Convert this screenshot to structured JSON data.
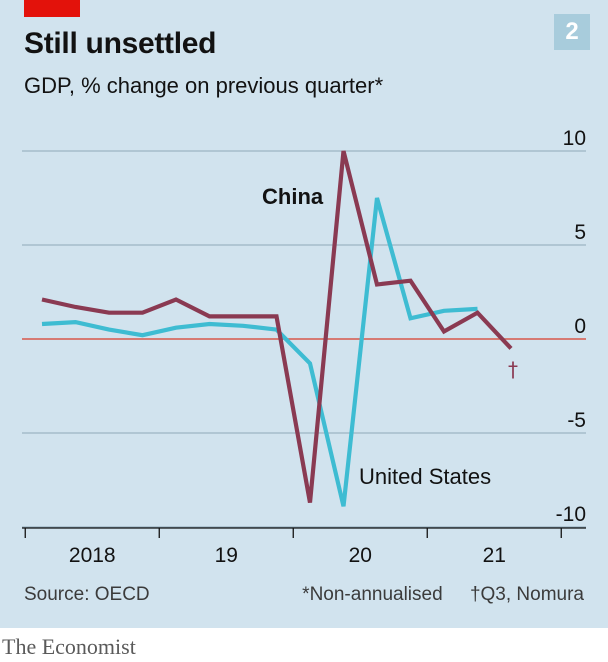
{
  "chart_data": {
    "type": "line",
    "title": "Still unsettled",
    "subtitle": "GDP, % change on previous quarter*",
    "chart_number": "2",
    "x": [
      "2018Q1",
      "2018Q2",
      "2018Q3",
      "2018Q4",
      "2019Q1",
      "2019Q2",
      "2019Q3",
      "2019Q4",
      "2020Q1",
      "2020Q2",
      "2020Q3",
      "2020Q4",
      "2021Q1",
      "2021Q2",
      "2021Q3"
    ],
    "x_tick_labels": [
      "2018",
      "19",
      "20",
      "21"
    ],
    "y_ticks": [
      "10",
      "5",
      "0",
      "-5",
      "-10"
    ],
    "ylim": [
      -10,
      10
    ],
    "grid": true,
    "series": [
      {
        "name": "China",
        "color": "#8a3a52",
        "values": [
          2.1,
          1.7,
          1.4,
          1.4,
          2.1,
          1.2,
          1.2,
          1.2,
          -8.7,
          10.0,
          2.9,
          3.1,
          0.4,
          1.4,
          -0.5
        ]
      },
      {
        "name": "United States",
        "color": "#3ebcd2",
        "values": [
          0.8,
          0.9,
          0.5,
          0.2,
          0.6,
          0.8,
          0.7,
          0.5,
          -1.3,
          -8.9,
          7.5,
          1.1,
          1.5,
          1.6,
          null
        ]
      }
    ],
    "footnote_marker": "†"
  },
  "source": "Source: OECD",
  "note1": "*Non-annualised",
  "note2": "†Q3, Nomura",
  "brand": "The Economist"
}
